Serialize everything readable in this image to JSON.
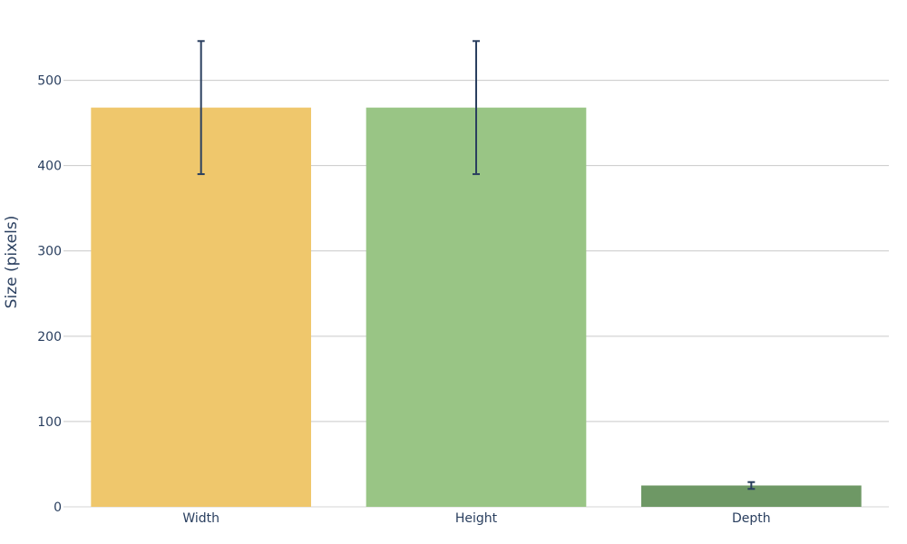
{
  "chart_data": {
    "type": "bar",
    "categories": [
      "Width",
      "Height",
      "Depth"
    ],
    "values": [
      468,
      468,
      25
    ],
    "error_plus": [
      78,
      78,
      4
    ],
    "error_minus": [
      78,
      78,
      4
    ],
    "colors": [
      "#efc76c",
      "#99c585",
      "#6e9865"
    ],
    "error_color": "#2a3f5f",
    "ylabel": "Size (pixels)",
    "ylim": [
      0,
      575
    ],
    "yticks": [
      0,
      100,
      200,
      300,
      400,
      500
    ],
    "grid": true,
    "legend": "none"
  }
}
